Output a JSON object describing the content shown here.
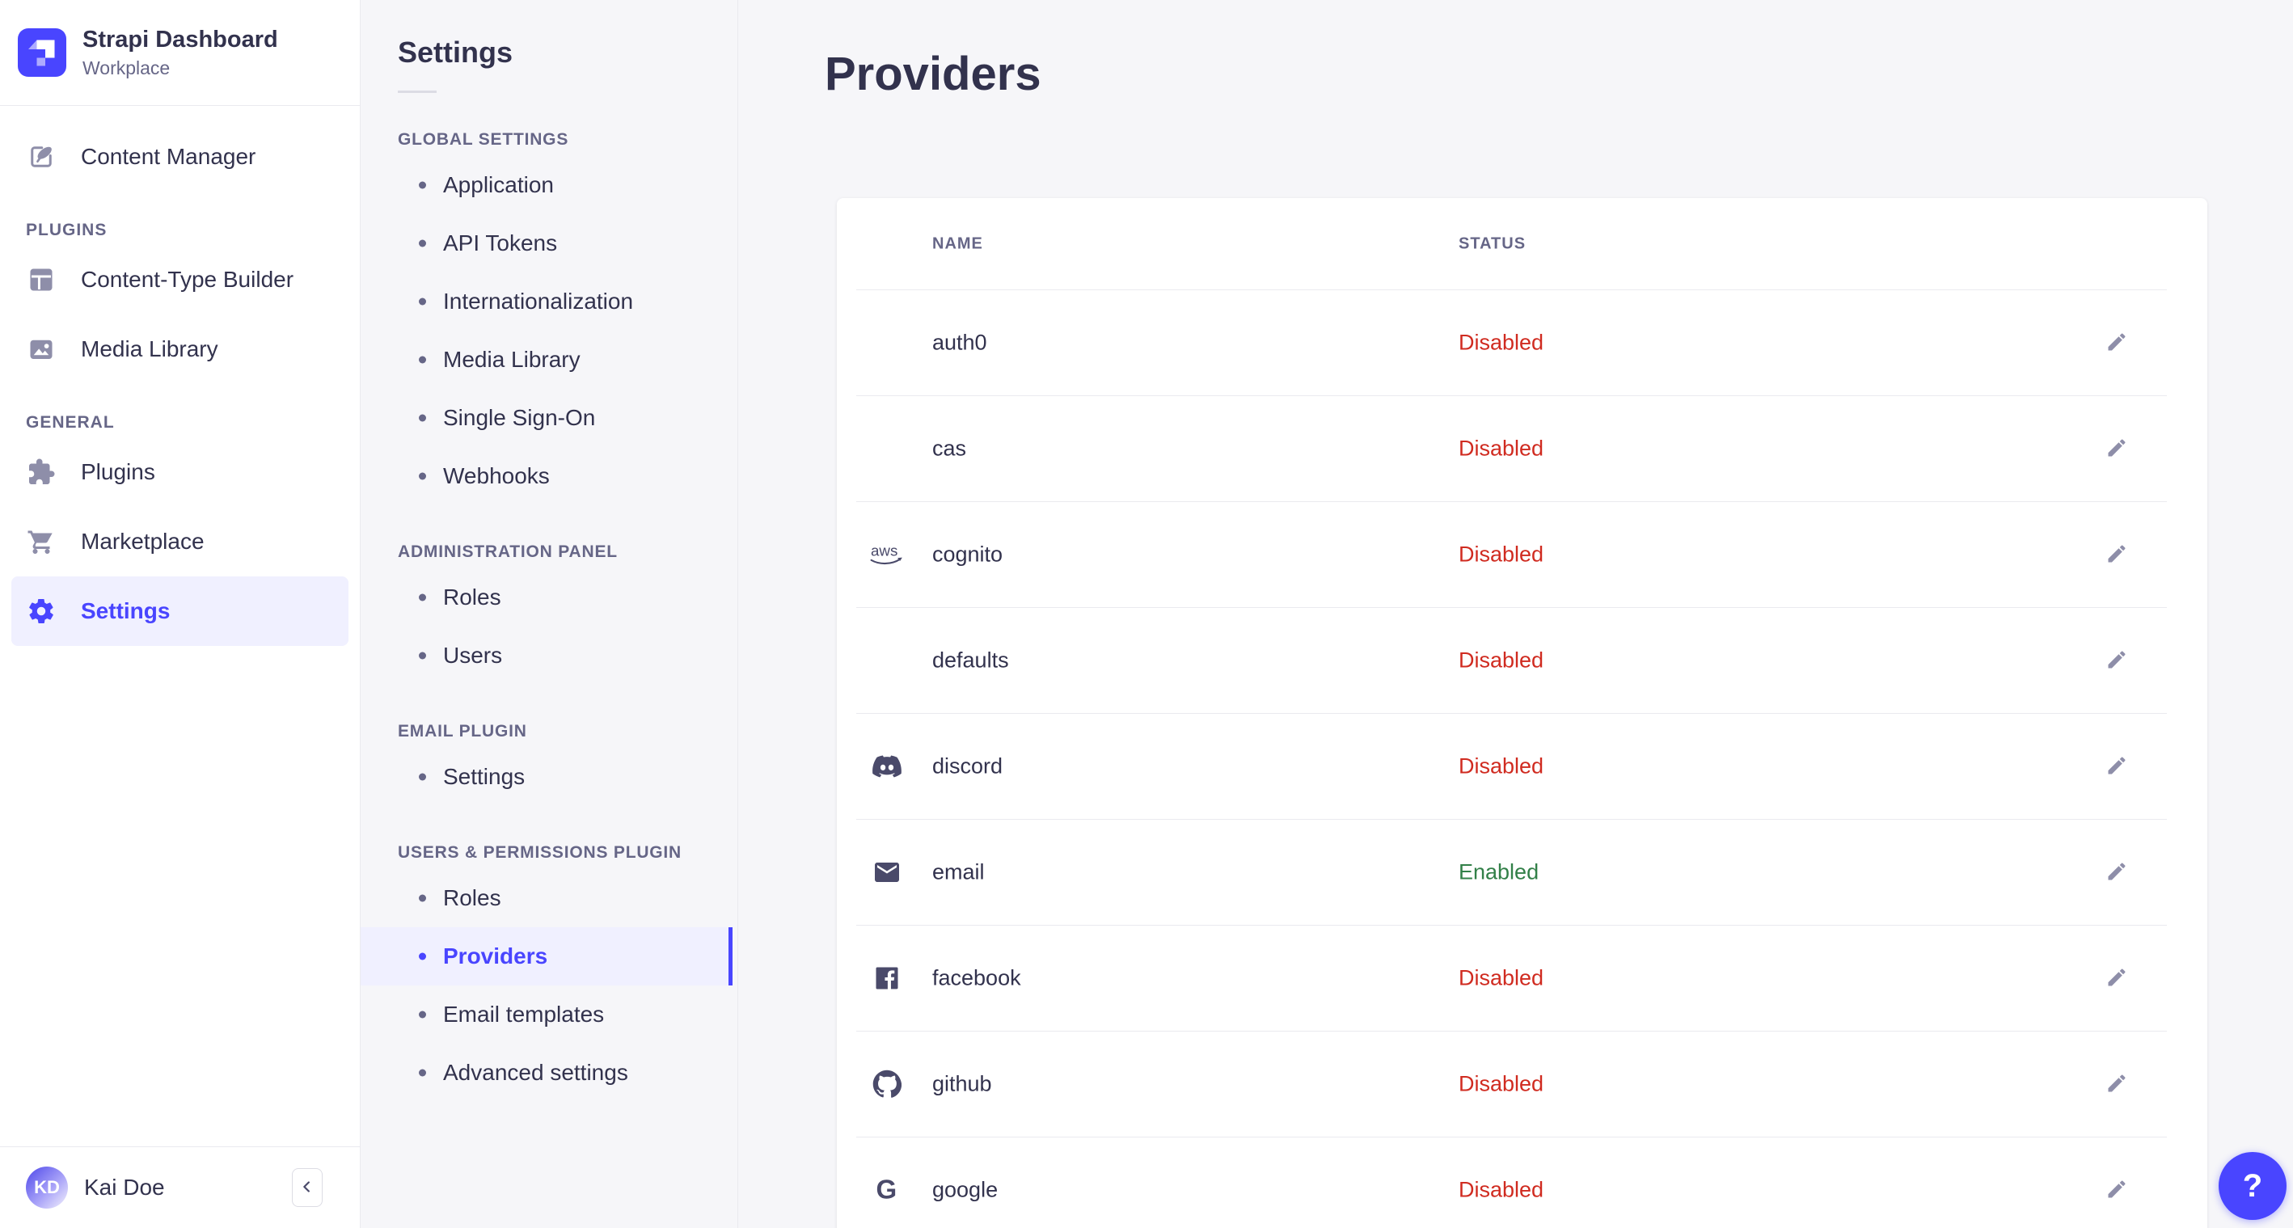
{
  "app_sidebar": {
    "title": "Strapi Dashboard",
    "subtitle": "Workplace",
    "top_items": [
      {
        "label": "Content Manager",
        "icon": "content-manager-icon",
        "active": false
      }
    ],
    "sections": [
      {
        "label": "PLUGINS",
        "items": [
          {
            "label": "Content-Type Builder",
            "icon": "content-type-builder-icon",
            "active": false
          },
          {
            "label": "Media Library",
            "icon": "media-library-icon",
            "active": false
          }
        ]
      },
      {
        "label": "GENERAL",
        "items": [
          {
            "label": "Plugins",
            "icon": "plugins-icon",
            "active": false
          },
          {
            "label": "Marketplace",
            "icon": "marketplace-icon",
            "active": false
          },
          {
            "label": "Settings",
            "icon": "settings-icon",
            "active": true
          }
        ]
      }
    ],
    "user": {
      "name": "Kai Doe",
      "initials": "KD"
    }
  },
  "settings_nav": {
    "title": "Settings",
    "sections": [
      {
        "label": "GLOBAL SETTINGS",
        "items": [
          {
            "label": "Application",
            "active": false
          },
          {
            "label": "API Tokens",
            "active": false
          },
          {
            "label": "Internationalization",
            "active": false
          },
          {
            "label": "Media Library",
            "active": false
          },
          {
            "label": "Single Sign-On",
            "active": false
          },
          {
            "label": "Webhooks",
            "active": false
          }
        ]
      },
      {
        "label": "ADMINISTRATION PANEL",
        "items": [
          {
            "label": "Roles",
            "active": false
          },
          {
            "label": "Users",
            "active": false
          }
        ]
      },
      {
        "label": "EMAIL PLUGIN",
        "items": [
          {
            "label": "Settings",
            "active": false
          }
        ]
      },
      {
        "label": "USERS & PERMISSIONS PLUGIN",
        "items": [
          {
            "label": "Roles",
            "active": false
          },
          {
            "label": "Providers",
            "active": true
          },
          {
            "label": "Email templates",
            "active": false
          },
          {
            "label": "Advanced settings",
            "active": false
          }
        ]
      }
    ]
  },
  "main": {
    "title": "Providers",
    "table": {
      "headers": [
        "NAME",
        "STATUS"
      ],
      "rows": [
        {
          "name": "auth0",
          "icon": null,
          "status": "Disabled"
        },
        {
          "name": "cas",
          "icon": null,
          "status": "Disabled"
        },
        {
          "name": "cognito",
          "icon": "aws-icon",
          "status": "Disabled"
        },
        {
          "name": "defaults",
          "icon": null,
          "status": "Disabled"
        },
        {
          "name": "discord",
          "icon": "discord-icon",
          "status": "Disabled"
        },
        {
          "name": "email",
          "icon": "email-icon",
          "status": "Enabled"
        },
        {
          "name": "facebook",
          "icon": "facebook-icon",
          "status": "Disabled"
        },
        {
          "name": "github",
          "icon": "github-icon",
          "status": "Disabled"
        },
        {
          "name": "google",
          "icon": "google-icon",
          "status": "Disabled"
        }
      ]
    }
  },
  "help": {
    "label": "?"
  },
  "colors": {
    "primary": "#4945ff",
    "primary_bg": "#f0f0ff",
    "danger": "#d02b20",
    "success": "#328048",
    "text": "#32324d",
    "text_muted": "#666687",
    "icon_muted": "#8e8ea9",
    "border": "#eaeaef",
    "background": "#f6f6f9"
  }
}
